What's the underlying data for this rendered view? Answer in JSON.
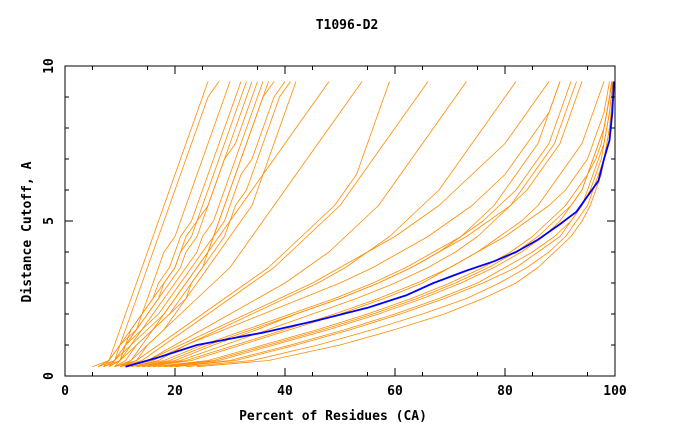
{
  "chart_data": {
    "type": "line",
    "title": "T1096-D2",
    "xlabel": "Percent of Residues (CA)",
    "ylabel": "Distance Cutoff, A",
    "xlim": [
      0,
      100
    ],
    "ylim": [
      0,
      10
    ],
    "xticks": [
      "0",
      "20",
      "40",
      "60",
      "80",
      "100"
    ],
    "yticks": [
      "0",
      "5",
      "10"
    ],
    "grid": false,
    "legend": "none",
    "colors": {
      "models": "#ff8c00",
      "highlight": "#0000ff",
      "axes": "#000000"
    },
    "x_cutoffs": [
      0.3,
      0.5,
      1,
      1.5,
      2,
      2.5,
      3,
      3.5,
      4,
      4.5,
      5,
      5.5,
      6,
      6.5,
      7,
      7.5,
      8,
      8.5,
      9,
      9.5
    ],
    "highlight": {
      "x": [
        11,
        17,
        24,
        36,
        46,
        55,
        62,
        67,
        73,
        78,
        82,
        86,
        90,
        93,
        95,
        97,
        98,
        99,
        99.5,
        99.8
      ],
      "y": [
        0.3,
        0.6,
        1.0,
        1.4,
        1.8,
        2.2,
        2.6,
        3.0,
        3.4,
        3.7,
        4.0,
        4.4,
        4.9,
        5.3,
        5.8,
        6.3,
        7.0,
        7.6,
        8.5,
        9.5
      ]
    },
    "series": [
      {
        "x": [
          6,
          9,
          11,
          14,
          17,
          19,
          21,
          23,
          25,
          27,
          28,
          29,
          30,
          31,
          32,
          33,
          34,
          35,
          36,
          38
        ]
      },
      {
        "x": [
          7,
          9,
          12,
          15,
          18,
          20,
          22,
          24,
          26,
          27,
          29,
          30,
          31,
          32,
          34,
          35,
          36,
          37,
          38,
          40
        ]
      },
      {
        "x": [
          5,
          8,
          10,
          13,
          15,
          17,
          19,
          21,
          22,
          24,
          25,
          26,
          27,
          28,
          29,
          30,
          31,
          32,
          33,
          34
        ]
      },
      {
        "x": [
          8,
          10,
          12,
          14,
          16,
          18,
          20,
          22,
          24,
          25,
          27,
          28,
          29,
          30,
          31,
          32,
          33,
          34,
          35,
          36
        ]
      },
      {
        "x": [
          9,
          11,
          13,
          16,
          19,
          21,
          23,
          25,
          27,
          29,
          30,
          31,
          33,
          34,
          35,
          36,
          37,
          38,
          39,
          41
        ]
      },
      {
        "x": [
          6,
          8,
          10,
          12,
          14,
          16,
          18,
          20,
          21,
          22,
          24,
          25,
          26,
          27,
          28,
          29,
          30,
          31,
          32,
          33
        ]
      },
      {
        "x": [
          7,
          10,
          13,
          16,
          19,
          22,
          24,
          26,
          28,
          30,
          32,
          34,
          35,
          36,
          37,
          38,
          39,
          40,
          41,
          42
        ]
      },
      {
        "x": [
          8,
          9,
          11,
          13,
          15,
          17,
          18,
          20,
          21,
          23,
          24,
          26,
          27,
          28,
          29,
          31,
          32,
          33,
          34,
          35
        ]
      },
      {
        "x": [
          10,
          13,
          15,
          18,
          20,
          22,
          23,
          25,
          26,
          27,
          28,
          29,
          30,
          31,
          32,
          33,
          34,
          35,
          36,
          37
        ]
      },
      {
        "x": [
          7,
          8,
          9,
          10,
          11,
          12,
          13,
          14,
          15,
          16,
          17,
          18,
          19,
          20,
          21,
          22,
          23,
          24,
          25,
          26
        ]
      },
      {
        "x": [
          8,
          9,
          10,
          11,
          12,
          13,
          14,
          15,
          16,
          17,
          18,
          19,
          20,
          21,
          22,
          23,
          24,
          25,
          26,
          28
        ]
      },
      {
        "x": [
          9,
          10,
          11,
          12,
          14,
          15,
          16,
          17,
          18,
          20,
          21,
          22,
          23,
          24,
          25,
          26,
          27,
          28,
          29,
          30
        ]
      },
      {
        "x": [
          8,
          10,
          11,
          13,
          14,
          16,
          17,
          19,
          20,
          21,
          23,
          24,
          25,
          26,
          27,
          28,
          29,
          30,
          31,
          32
        ]
      },
      {
        "x": [
          10,
          12,
          14,
          16,
          18,
          20,
          22,
          24,
          26,
          28,
          30,
          32,
          34,
          36,
          38,
          40,
          42,
          44,
          46,
          48
        ]
      },
      {
        "x": [
          9,
          12,
          15,
          18,
          21,
          24,
          27,
          30,
          32,
          34,
          36,
          38,
          40,
          42,
          44,
          46,
          48,
          50,
          52,
          54
        ]
      },
      {
        "x": [
          10,
          14,
          18,
          22,
          26,
          30,
          34,
          38,
          41,
          44,
          47,
          50,
          52,
          54,
          56,
          58,
          60,
          62,
          64,
          66
        ]
      },
      {
        "x": [
          11,
          15,
          20,
          25,
          30,
          35,
          40,
          44,
          48,
          51,
          54,
          57,
          59,
          61,
          63,
          65,
          67,
          69,
          71,
          73
        ]
      },
      {
        "x": [
          9,
          13,
          17,
          21,
          25,
          29,
          33,
          37,
          40,
          43,
          46,
          49,
          51,
          53,
          54,
          55,
          56,
          57,
          58,
          59
        ]
      },
      {
        "x": [
          12,
          17,
          22,
          28,
          34,
          40,
          46,
          51,
          55,
          59,
          62,
          65,
          68,
          70,
          72,
          74,
          76,
          78,
          80,
          82
        ]
      },
      {
        "x": [
          10,
          15,
          21,
          27,
          33,
          39,
          45,
          50,
          55,
          60,
          64,
          68,
          71,
          74,
          77,
          80,
          82,
          84,
          86,
          88
        ]
      },
      {
        "x": [
          13,
          20,
          27,
          35,
          42,
          50,
          57,
          63,
          68,
          72,
          75,
          78,
          80,
          82,
          84,
          86,
          87,
          88,
          89,
          90
        ]
      },
      {
        "x": [
          14,
          21,
          29,
          37,
          45,
          53,
          60,
          66,
          71,
          75,
          78,
          81,
          83,
          85,
          87,
          89,
          90,
          91,
          92,
          93
        ]
      },
      {
        "x": [
          12,
          18,
          25,
          33,
          41,
          49,
          56,
          62,
          67,
          72,
          76,
          79,
          82,
          84,
          86,
          88,
          89,
          90,
          91,
          92
        ]
      },
      {
        "x": [
          15,
          23,
          32,
          41,
          50,
          58,
          65,
          70,
          75,
          79,
          83,
          86,
          88,
          90,
          92,
          94,
          95,
          96,
          97,
          98
        ]
      },
      {
        "x": [
          18,
          28,
          38,
          48,
          57,
          65,
          72,
          78,
          83,
          87,
          90,
          92,
          94,
          95,
          96,
          97,
          98,
          98.5,
          99,
          99.5
        ]
      },
      {
        "x": [
          20,
          31,
          42,
          52,
          61,
          69,
          76,
          82,
          86,
          90,
          92,
          94,
          95,
          96,
          97,
          98,
          98.5,
          99,
          99.3,
          99.6
        ]
      },
      {
        "x": [
          16,
          26,
          36,
          46,
          55,
          63,
          70,
          76,
          81,
          85,
          88,
          91,
          93,
          95,
          96,
          97,
          98,
          98.5,
          99,
          99.4
        ]
      },
      {
        "x": [
          22,
          34,
          46,
          56,
          65,
          73,
          79,
          84,
          88,
          91,
          93,
          95,
          96,
          97,
          98,
          98.5,
          99,
          99.3,
          99.6,
          99.8
        ]
      },
      {
        "x": [
          24,
          37,
          50,
          60,
          69,
          76,
          82,
          86,
          89,
          92,
          94,
          95.5,
          96.5,
          97.5,
          98,
          98.5,
          99,
          99.3,
          99.5,
          99.7
        ]
      },
      {
        "x": [
          14,
          22,
          31,
          40,
          49,
          57,
          64,
          70,
          75,
          80,
          84,
          88,
          91,
          93,
          95,
          96,
          97,
          98,
          98.5,
          99
        ]
      },
      {
        "x": [
          17,
          27,
          37,
          47,
          56,
          64,
          71,
          77,
          82,
          86,
          89,
          92,
          94,
          95,
          96.5,
          97.5,
          98,
          98.5,
          99,
          99.4
        ]
      },
      {
        "x": [
          19,
          30,
          41,
          51,
          60,
          68,
          75,
          80,
          85,
          89,
          92,
          94,
          95.5,
          96.5,
          97.5,
          98,
          98.5,
          99,
          99.3,
          99.6
        ]
      },
      {
        "x": [
          13,
          19,
          26,
          34,
          42,
          50,
          57,
          63,
          68,
          73,
          77,
          81,
          84,
          86,
          88,
          90,
          91,
          92,
          93,
          94
        ]
      },
      {
        "x": [
          11,
          16,
          22,
          29,
          36,
          43,
          50,
          56,
          61,
          66,
          70,
          74,
          77,
          80,
          82,
          84,
          86,
          88,
          89,
          90
        ]
      }
    ]
  }
}
